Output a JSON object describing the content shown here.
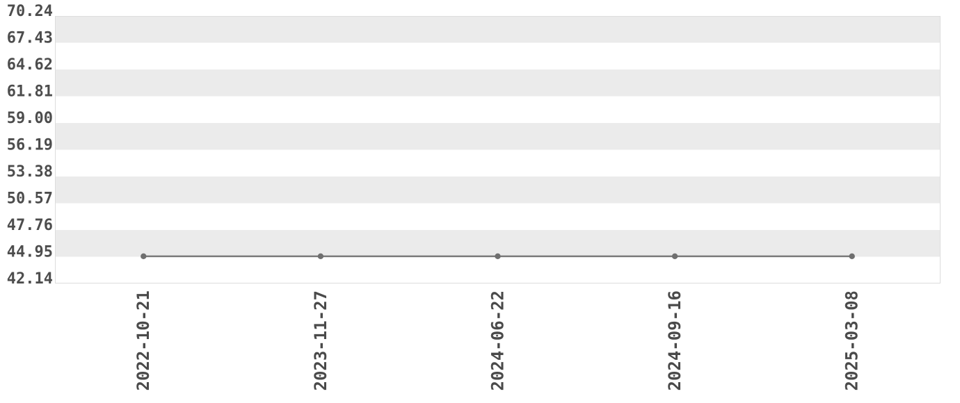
{
  "chart_data": {
    "type": "line",
    "title": "",
    "xlabel": "",
    "ylabel": "",
    "legend": "none",
    "grid": "horizontal-alternating-bands",
    "x_categories": [
      "2022-10-21",
      "2023-11-27",
      "2024-06-22",
      "2024-09-16",
      "2025-03-08"
    ],
    "series": [
      {
        "name": "value",
        "values": [
          45.0,
          45.0,
          45.0,
          45.0,
          45.0
        ]
      }
    ],
    "y_tick_labels": [
      "70.24",
      "67.43",
      "64.62",
      "61.81",
      "59.00",
      "56.19",
      "53.38",
      "50.57",
      "47.76",
      "44.95",
      "42.14"
    ],
    "y_tick_step": 2.81,
    "ylim": [
      42.14,
      70.24
    ],
    "marker": "circle",
    "styles": {
      "background": "#ffffff",
      "band_fill": "#ebebeb",
      "plot_border": "#dddddd",
      "line_color": "#7a7a7a",
      "marker_color": "#6f6f6f",
      "y_tick_label_color": "#4d4d4d",
      "x_tick_label_color": "#4a4a4a"
    }
  }
}
